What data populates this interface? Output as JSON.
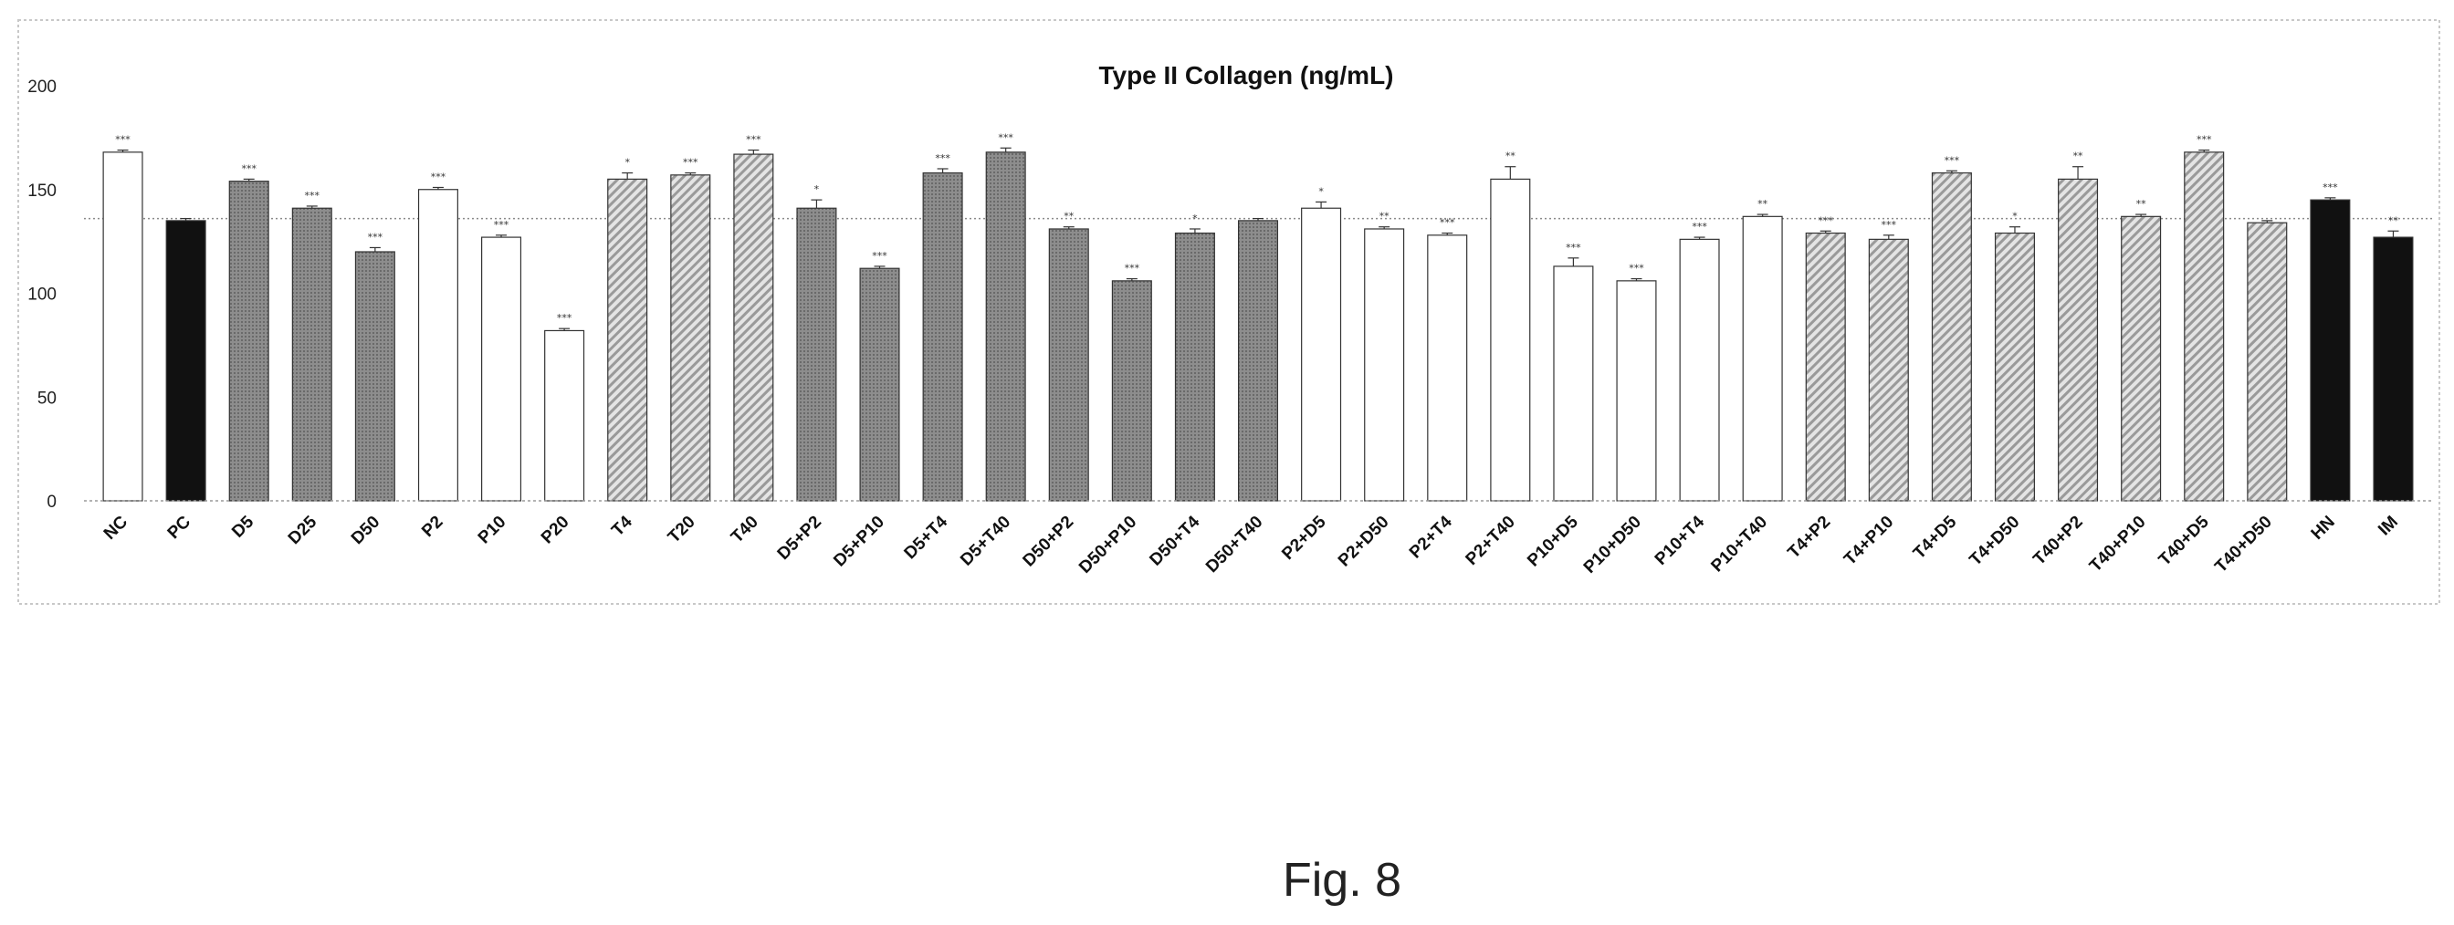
{
  "figure_caption": "Fig. 8",
  "chart_data": {
    "type": "bar",
    "title": "Type II Collagen (ng/mL)",
    "xlabel": "",
    "ylabel": "",
    "ylim": [
      0,
      200
    ],
    "yticks": [
      0,
      50,
      100,
      150,
      200
    ],
    "grid": false,
    "legend": "none",
    "reference_line": 136,
    "categories": [
      "NC",
      "PC",
      "D5",
      "D25",
      "D50",
      "P2",
      "P10",
      "P20",
      "T4",
      "T20",
      "T40",
      "D5+P2",
      "D5+P10",
      "D5+T4",
      "D5+T40",
      "D50+P2",
      "D50+P10",
      "D50+T4",
      "D50+T40",
      "P2+D5",
      "P2+D50",
      "P2+T4",
      "P2+T40",
      "P10+D5",
      "P10+D50",
      "P10+T4",
      "P10+T40",
      "T4+P2",
      "T4+P10",
      "T4+D5",
      "T4+D50",
      "T40+P2",
      "T40+P10",
      "T40+D5",
      "T40+D50",
      "HN",
      "IM"
    ],
    "values": [
      168,
      135,
      154,
      141,
      120,
      150,
      127,
      82,
      155,
      157,
      167,
      141,
      112,
      158,
      168,
      131,
      106,
      129,
      135,
      141,
      131,
      128,
      155,
      113,
      106,
      126,
      137,
      129,
      126,
      158,
      129,
      155,
      137,
      168,
      134,
      145,
      127
    ],
    "errors": [
      1,
      1,
      1,
      1,
      2,
      1,
      1,
      1,
      3,
      1,
      2,
      4,
      1,
      2,
      2,
      1,
      1,
      2,
      1,
      3,
      1,
      1,
      6,
      4,
      1,
      1,
      1,
      1,
      2,
      1,
      3,
      6,
      1,
      1,
      1,
      1,
      3
    ],
    "significance": [
      "***",
      "",
      "***",
      "***",
      "***",
      "***",
      "***",
      "***",
      "*",
      "***",
      "***",
      "*",
      "***",
      "***",
      "***",
      "**",
      "***",
      "*",
      "",
      "*",
      "**",
      "***",
      "**",
      "***",
      "***",
      "***",
      "**",
      "***",
      "***",
      "***",
      "*",
      "**",
      "**",
      "***",
      "",
      "***",
      "**"
    ],
    "fills": [
      "white",
      "black",
      "dots",
      "dots",
      "dots",
      "white",
      "white",
      "white",
      "hatch",
      "hatch",
      "hatch",
      "dots",
      "dots",
      "dots",
      "dots",
      "dots",
      "dots",
      "dots",
      "dots",
      "white",
      "white",
      "white",
      "white",
      "white",
      "white",
      "white",
      "white",
      "hatch",
      "hatch",
      "hatch",
      "hatch",
      "hatch",
      "hatch",
      "hatch",
      "hatch",
      "black",
      "black"
    ]
  }
}
